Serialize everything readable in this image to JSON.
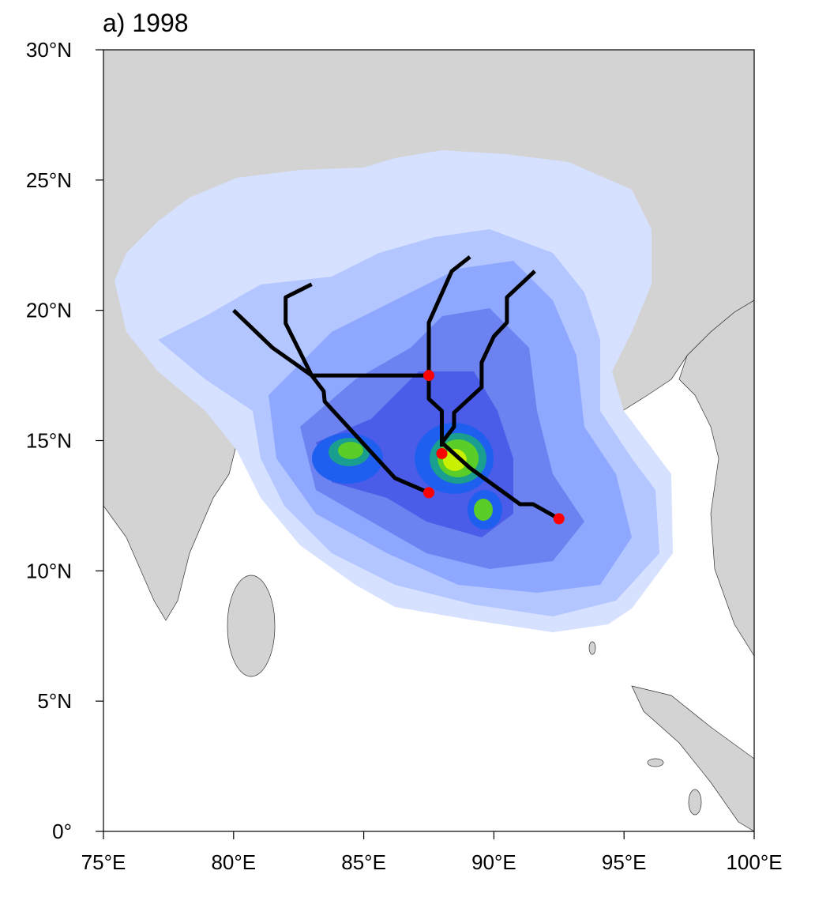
{
  "chart_data": {
    "type": "map",
    "title": "a) 1998",
    "xlim": [
      75,
      100
    ],
    "ylim": [
      0,
      30
    ],
    "xticks": [
      {
        "value": 75,
        "label": "75°E"
      },
      {
        "value": 80,
        "label": "80°E"
      },
      {
        "value": 85,
        "label": "85°E"
      },
      {
        "value": 90,
        "label": "90°E"
      },
      {
        "value": 95,
        "label": "95°E"
      },
      {
        "value": 100,
        "label": "100°E"
      }
    ],
    "yticks": [
      {
        "value": 0,
        "label": "0°"
      },
      {
        "value": 5,
        "label": "5°N"
      },
      {
        "value": 10,
        "label": "10°N"
      },
      {
        "value": 15,
        "label": "15°N"
      },
      {
        "value": 20,
        "label": "20°N"
      },
      {
        "value": 25,
        "label": "25°N"
      },
      {
        "value": 30,
        "label": "30°N"
      }
    ],
    "tracks": [
      {
        "color": "#000000",
        "x": [
          87.5,
          86.2,
          83.5,
          83.46,
          83.0,
          81.5,
          80.0
        ],
        "values": [
          13.0,
          13.56,
          16.5,
          16.9,
          17.5,
          18.56,
          20.0
        ]
      },
      {
        "color": "#000000",
        "x": [
          87.5,
          83.0,
          82.0,
          82.0,
          83.0
        ],
        "values": [
          17.5,
          17.5,
          19.5,
          20.5,
          21.0
        ]
      },
      {
        "color": "#000000",
        "x": [
          88.0,
          88.0,
          87.5,
          87.5,
          88.38,
          89.08
        ],
        "values": [
          14.77,
          16.14,
          16.6,
          19.53,
          21.5,
          22.05
        ]
      },
      {
        "color": "#000000",
        "x": [
          92.5,
          91.5,
          91.0,
          89.08,
          88.0,
          88.47,
          88.47,
          89.53,
          89.53,
          90.0,
          90.5,
          90.5,
          91.57
        ],
        "values": [
          12.0,
          12.56,
          12.56,
          13.95,
          14.92,
          15.53,
          16.07,
          17.05,
          18.0,
          19.0,
          19.53,
          20.5,
          21.5
        ]
      }
    ],
    "genesis": {
      "color": "#ff0000",
      "x": [
        87.5,
        87.5,
        88.0,
        92.5
      ],
      "values": [
        13.0,
        17.5,
        14.5,
        12.0
      ]
    }
  }
}
